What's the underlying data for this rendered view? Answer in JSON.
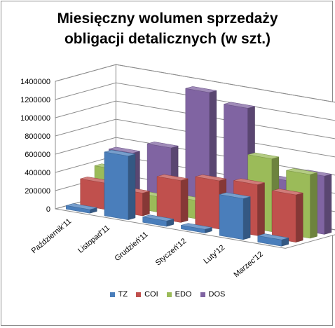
{
  "chart_data": {
    "type": "bar",
    "style": "3d-clustered-column",
    "title": "Miesięczny wolumen sprzedaży obligacji detalicznych (w szt.)",
    "title_lines": [
      "Miesięczny wolumen sprzedaży",
      "obligacji detalicznych (w szt.)"
    ],
    "categories": [
      "Październik'11",
      "Listopad'11",
      "Grudzień'11",
      "Styczeń'12",
      "Luty'12",
      "Marzec'12"
    ],
    "series": [
      {
        "name": "TZ",
        "color": "#4a7ebb",
        "values": [
          40000,
          700000,
          60000,
          40000,
          450000,
          70000
        ]
      },
      {
        "name": "COI",
        "color": "#c0504d",
        "values": [
          290000,
          250000,
          460000,
          530000,
          560000,
          520000
        ]
      },
      {
        "name": "EDO",
        "color": "#9bbb59",
        "values": [
          390000,
          170000,
          200000,
          200000,
          800000,
          700000
        ]
      },
      {
        "name": "DOS",
        "color": "#8064a2",
        "values": [
          530000,
          660000,
          1340000,
          1240000,
          520000,
          640000
        ]
      }
    ],
    "y_ticks": [
      "0",
      "200000",
      "400000",
      "600000",
      "800000",
      "1000000",
      "1200000",
      "1400000"
    ],
    "ylim": [
      0,
      1400000
    ],
    "grid": true,
    "legend_position": "bottom",
    "xlabel": "",
    "ylabel": ""
  }
}
